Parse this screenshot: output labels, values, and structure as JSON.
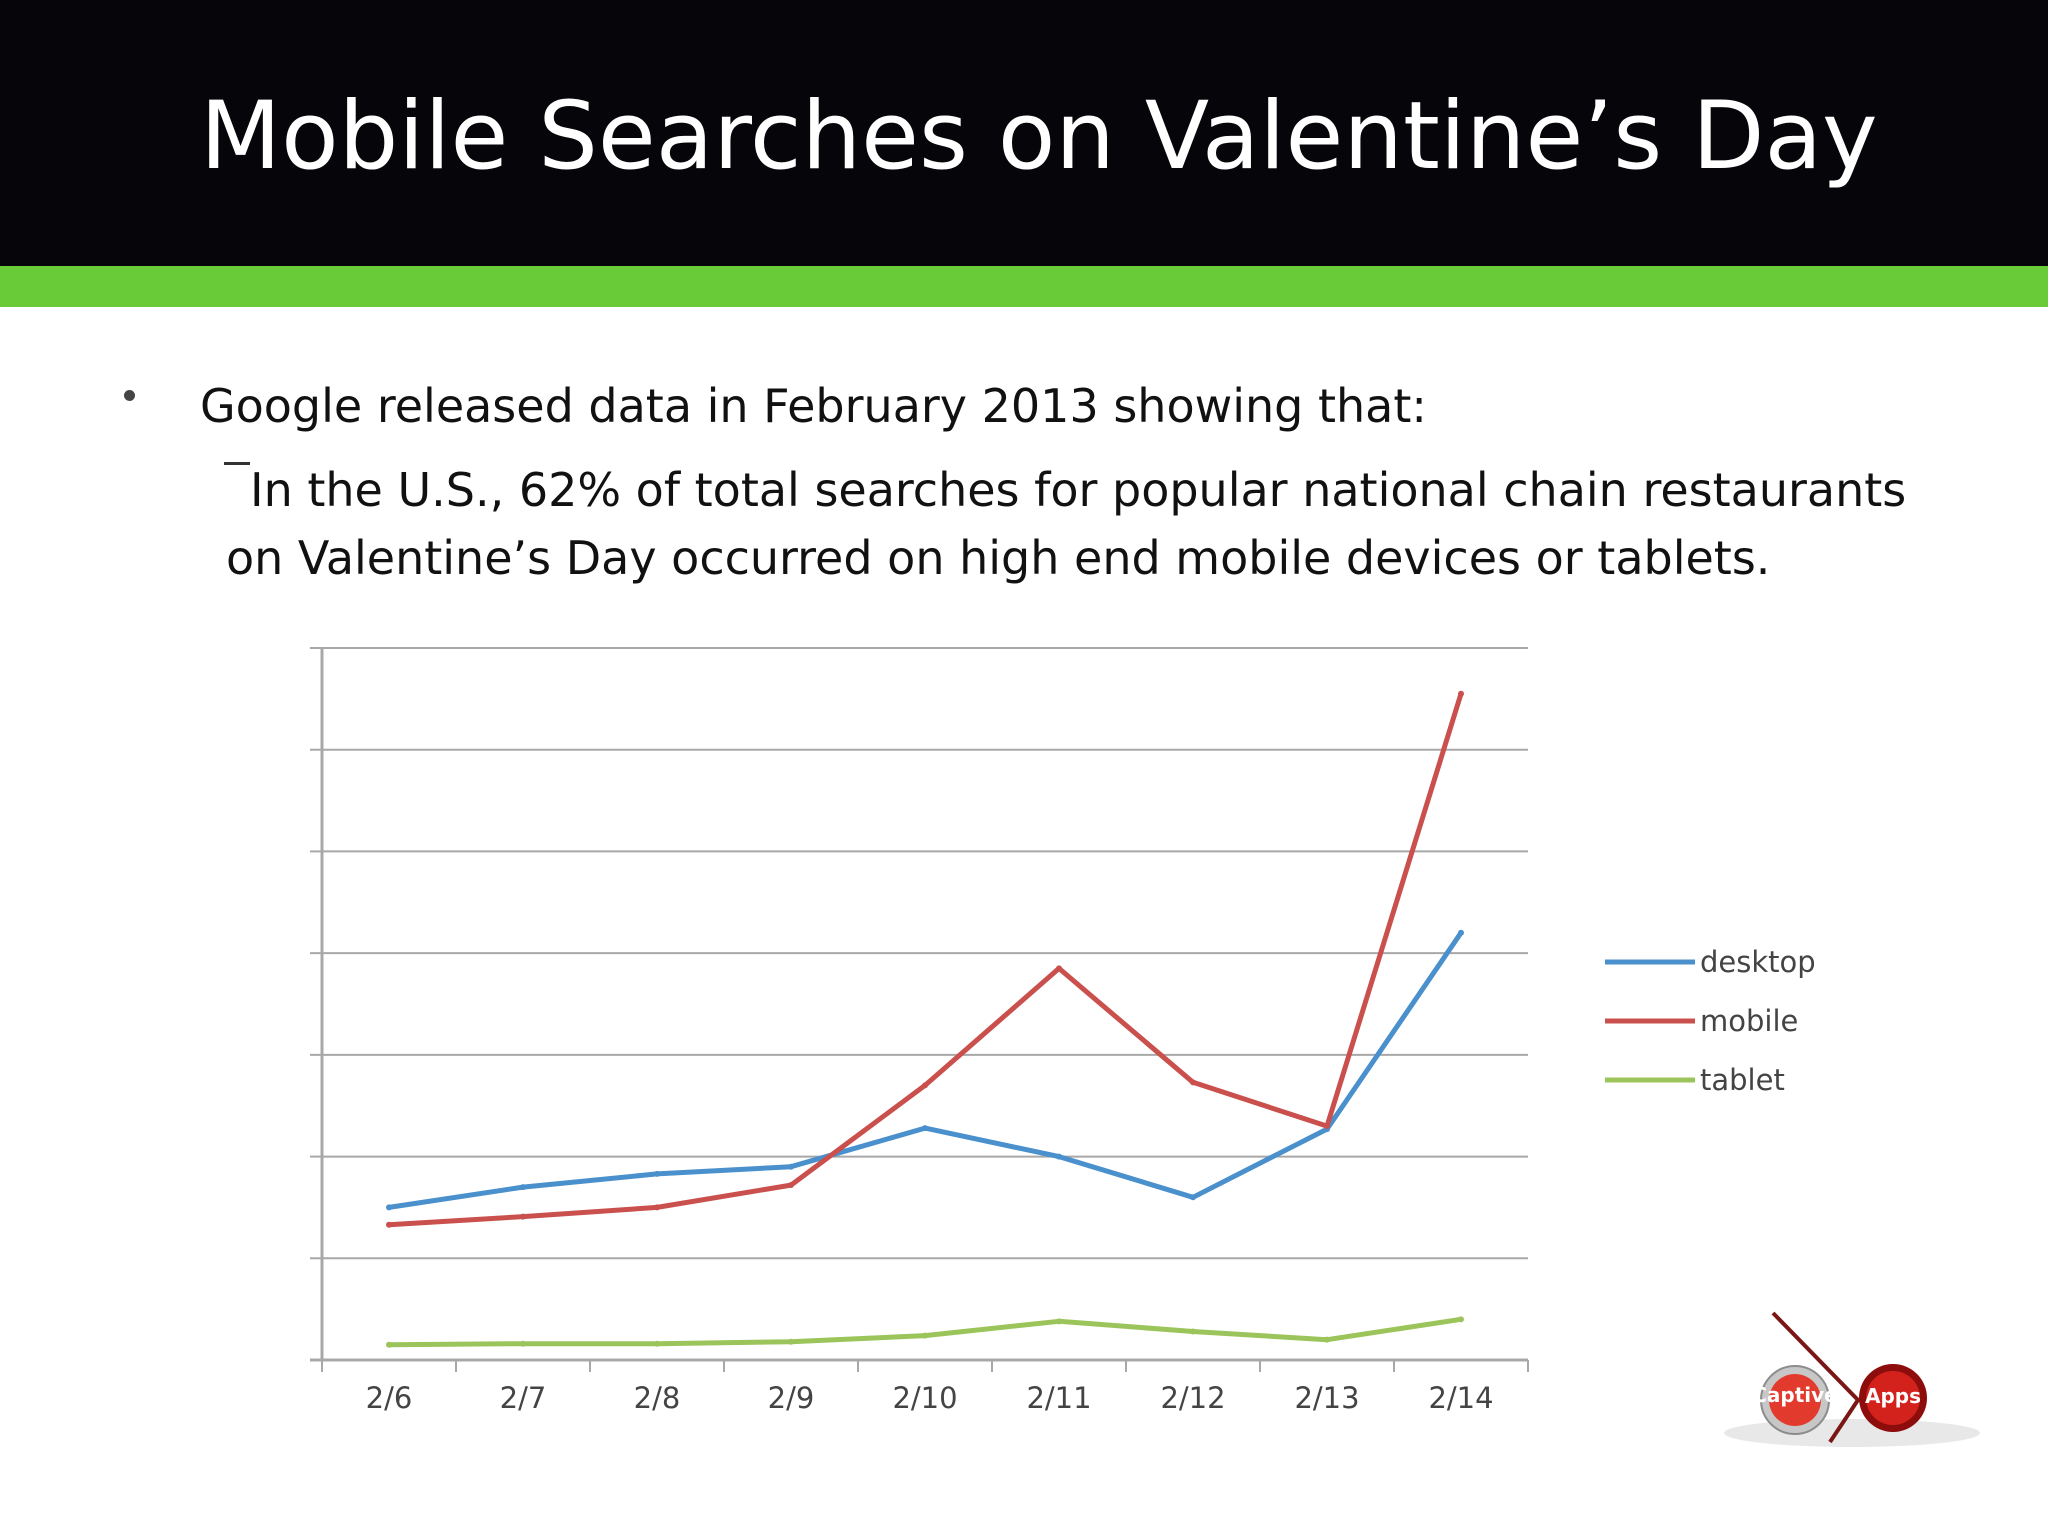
{
  "slide": {
    "title": "Mobile Searches on Valentine’s Day",
    "bullet": "Google released data in February 2013 showing that:",
    "sub_bullet_line1": "In the U.S., 62% of total searches for popular national chain restaurants",
    "sub_bullet_line2": "on Valentine’s Day occurred on high end mobile devices or tablets."
  },
  "colors": {
    "header_bg": "#05050a",
    "accent": "#6acb38",
    "desktop": "#4a90cc",
    "mobile": "#c9504d",
    "tablet": "#9bc45a"
  },
  "chart_data": {
    "type": "line",
    "title": "",
    "xlabel": "",
    "ylabel": "",
    "x": [
      "2/6",
      "2/7",
      "2/8",
      "2/9",
      "2/10",
      "2/11",
      "2/12",
      "2/13",
      "2/14"
    ],
    "ylim": [
      0,
      7
    ],
    "grid": true,
    "legend_position": "right",
    "series": [
      {
        "name": "desktop",
        "color": "#4a90cc",
        "values": [
          1.5,
          1.7,
          1.83,
          1.9,
          2.28,
          2.0,
          1.6,
          2.27,
          4.2
        ]
      },
      {
        "name": "mobile",
        "color": "#c9504d",
        "values": [
          1.33,
          1.41,
          1.5,
          1.72,
          2.7,
          3.85,
          2.73,
          2.3,
          6.55
        ]
      },
      {
        "name": "tablet",
        "color": "#9bc45a",
        "values": [
          0.15,
          0.16,
          0.16,
          0.18,
          0.24,
          0.38,
          0.28,
          0.2,
          0.4
        ]
      }
    ]
  },
  "logo": {
    "left_text": "Captive",
    "right_text": "Apps"
  }
}
